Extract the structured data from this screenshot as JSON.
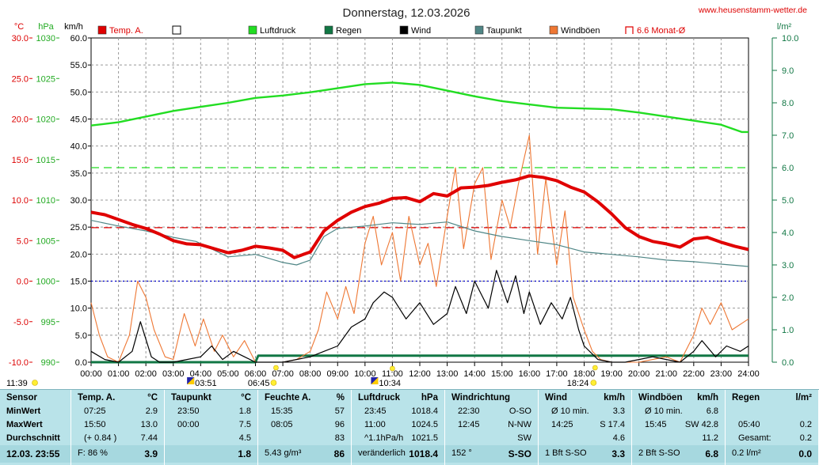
{
  "header": {
    "title": "Donnerstag, 12.03.2026",
    "site": "www.heusenstamm-wetter.de",
    "unit_temp": "°C",
    "unit_pressure": "hPa",
    "unit_wind": "km/h",
    "unit_rain": "l/m²"
  },
  "legend": [
    {
      "label": "Temp. A.",
      "color": "#e00000",
      "kind": "filled"
    },
    {
      "label": "",
      "color": "#000000",
      "kind": "empty"
    },
    {
      "label": "Luftdruck",
      "color": "#22dd22",
      "kind": "filled"
    },
    {
      "label": "Regen",
      "color": "#117744",
      "kind": "filled"
    },
    {
      "label": "Wind",
      "color": "#000000",
      "kind": "filled"
    },
    {
      "label": "Taupunkt",
      "color": "#4f8686",
      "kind": "filled"
    },
    {
      "label": "Windböen",
      "color": "#ee7733",
      "kind": "filled"
    },
    {
      "label": "6.6 Monat-Ø",
      "color": "#e00000",
      "kind": "outline"
    }
  ],
  "markers": {
    "left_time": "11:39",
    "sunrise": "06:45",
    "sunset": "18:24",
    "moon_events": [
      "03:51",
      "10:34"
    ]
  },
  "chart_data": {
    "type": "line",
    "x_unit": "hours (00:00-24:00)",
    "xlim": [
      0,
      24
    ],
    "x_ticks": [
      "00:00",
      "01:00",
      "02:00",
      "03:00",
      "04:00",
      "05:00",
      "06:00",
      "07:00",
      "08:00",
      "09:00",
      "10:00",
      "11:00",
      "12:00",
      "13:00",
      "14:00",
      "15:00",
      "16:00",
      "17:00",
      "18:00",
      "19:00",
      "20:00",
      "21:00",
      "22:00",
      "23:00",
      "24:00"
    ],
    "axes": {
      "temp": {
        "label": "°C",
        "ylim": [
          -10,
          30
        ],
        "ticks": [
          "30.0",
          "25.0",
          "20.0",
          "15.0",
          "10.0",
          "5.0",
          "0.0",
          "-5.0",
          "-10.0"
        ]
      },
      "pressure": {
        "label": "hPa",
        "ylim": [
          990,
          1030
        ],
        "ticks": [
          "1030",
          "1025",
          "1020",
          "1015",
          "1010",
          "1005",
          "1000",
          "995",
          "990"
        ]
      },
      "wind": {
        "label": "km/h",
        "ylim": [
          0,
          60
        ],
        "ticks": [
          "60.0",
          "55.0",
          "50.0",
          "45.0",
          "40.0",
          "35.0",
          "30.0",
          "25.0",
          "20.0",
          "15.0",
          "10.0",
          "5.0",
          "0.0"
        ]
      },
      "rain": {
        "label": "l/m²",
        "ylim": [
          0,
          10
        ],
        "ticks": [
          "10.0",
          "9.0",
          "8.0",
          "7.0",
          "6.0",
          "5.0",
          "4.0",
          "3.0",
          "2.0",
          "1.0",
          "0.0"
        ]
      }
    },
    "reference_lines": {
      "pressure_level": 1014,
      "temp_month_avg": 6.6,
      "temp_zero": 0
    },
    "grid": true,
    "series": [
      {
        "name": "Temp. A.",
        "axis": "temp",
        "color": "#e00000",
        "points": [
          [
            0,
            8.5
          ],
          [
            0.5,
            8.2
          ],
          [
            1,
            7.6
          ],
          [
            1.5,
            7.0
          ],
          [
            2,
            6.5
          ],
          [
            2.5,
            5.8
          ],
          [
            3,
            5.0
          ],
          [
            3.5,
            4.6
          ],
          [
            4,
            4.5
          ],
          [
            4.5,
            4.0
          ],
          [
            5,
            3.5
          ],
          [
            5.5,
            3.8
          ],
          [
            6,
            4.3
          ],
          [
            6.5,
            4.1
          ],
          [
            7,
            3.8
          ],
          [
            7.5,
            3.0
          ],
          [
            7.42,
            2.9
          ],
          [
            8,
            3.6
          ],
          [
            8.5,
            6.2
          ],
          [
            9,
            7.5
          ],
          [
            9.5,
            8.5
          ],
          [
            10,
            9.2
          ],
          [
            10.5,
            9.6
          ],
          [
            11,
            10.2
          ],
          [
            11.5,
            10.3
          ],
          [
            12,
            9.8
          ],
          [
            12.5,
            10.8
          ],
          [
            13,
            10.5
          ],
          [
            13.5,
            11.5
          ],
          [
            14,
            11.6
          ],
          [
            14.5,
            11.8
          ],
          [
            15,
            12.2
          ],
          [
            15.5,
            12.5
          ],
          [
            16,
            13.0
          ],
          [
            16.5,
            12.8
          ],
          [
            17,
            12.4
          ],
          [
            17.5,
            11.6
          ],
          [
            18,
            11.0
          ],
          [
            18.5,
            9.8
          ],
          [
            19,
            8.3
          ],
          [
            19.5,
            6.6
          ],
          [
            20,
            5.5
          ],
          [
            20.5,
            4.9
          ],
          [
            21,
            4.6
          ],
          [
            21.5,
            4.2
          ],
          [
            22,
            5.2
          ],
          [
            22.5,
            5.4
          ],
          [
            23,
            4.8
          ],
          [
            23.5,
            4.3
          ],
          [
            24,
            3.9
          ]
        ]
      },
      {
        "name": "Taupunkt",
        "axis": "temp",
        "color": "#4f8686",
        "points": [
          [
            0,
            7.5
          ],
          [
            1,
            6.8
          ],
          [
            2,
            6.2
          ],
          [
            3,
            5.4
          ],
          [
            3.83,
            4.9
          ],
          [
            4.5,
            3.8
          ],
          [
            5,
            3.0
          ],
          [
            6,
            3.3
          ],
          [
            7,
            2.3
          ],
          [
            7.5,
            2.0
          ],
          [
            8,
            2.6
          ],
          [
            8.5,
            5.5
          ],
          [
            9,
            6.5
          ],
          [
            10,
            6.8
          ],
          [
            11,
            7.2
          ],
          [
            12,
            7.0
          ],
          [
            13,
            7.3
          ],
          [
            14,
            6.2
          ],
          [
            15,
            5.5
          ],
          [
            16,
            5.0
          ],
          [
            17,
            4.5
          ],
          [
            18,
            3.6
          ],
          [
            19,
            3.3
          ],
          [
            20,
            3.0
          ],
          [
            21,
            2.6
          ],
          [
            22,
            2.4
          ],
          [
            23,
            2.1
          ],
          [
            24,
            1.8
          ]
        ]
      },
      {
        "name": "Luftdruck",
        "axis": "pressure",
        "color": "#22dd22",
        "points": [
          [
            0,
            1019.2
          ],
          [
            1,
            1019.6
          ],
          [
            2,
            1020.3
          ],
          [
            3,
            1021.0
          ],
          [
            4,
            1021.5
          ],
          [
            5,
            1022.0
          ],
          [
            6,
            1022.6
          ],
          [
            7,
            1022.9
          ],
          [
            8,
            1023.3
          ],
          [
            9,
            1023.8
          ],
          [
            10,
            1024.3
          ],
          [
            11,
            1024.5
          ],
          [
            12,
            1024.2
          ],
          [
            13,
            1023.5
          ],
          [
            14,
            1022.8
          ],
          [
            15,
            1022.2
          ],
          [
            16,
            1021.8
          ],
          [
            17,
            1021.4
          ],
          [
            18,
            1021.3
          ],
          [
            19,
            1021.2
          ],
          [
            20,
            1020.8
          ],
          [
            21,
            1020.3
          ],
          [
            22,
            1019.8
          ],
          [
            23,
            1019.3
          ],
          [
            23.75,
            1018.4
          ],
          [
            24,
            1018.4
          ]
        ]
      },
      {
        "name": "Wind",
        "axis": "wind",
        "color": "#000000",
        "points": [
          [
            0,
            2
          ],
          [
            0.5,
            0.5
          ],
          [
            1,
            0
          ],
          [
            1.5,
            2
          ],
          [
            1.8,
            7.5
          ],
          [
            2.2,
            1
          ],
          [
            2.5,
            0
          ],
          [
            3,
            0
          ],
          [
            3.5,
            0.5
          ],
          [
            4,
            1
          ],
          [
            4.4,
            3
          ],
          [
            4.8,
            0.5
          ],
          [
            5.2,
            2
          ],
          [
            5.6,
            1
          ],
          [
            6,
            0
          ],
          [
            7,
            0
          ],
          [
            8,
            1
          ],
          [
            8.5,
            2
          ],
          [
            9,
            3
          ],
          [
            9.5,
            6.5
          ],
          [
            10,
            8
          ],
          [
            10.3,
            11
          ],
          [
            10.7,
            13
          ],
          [
            11,
            12
          ],
          [
            11.5,
            8
          ],
          [
            12,
            11
          ],
          [
            12.5,
            7
          ],
          [
            13,
            9
          ],
          [
            13.3,
            14
          ],
          [
            13.7,
            9
          ],
          [
            14,
            15
          ],
          [
            14.5,
            10
          ],
          [
            14.8,
            17
          ],
          [
            15.2,
            11
          ],
          [
            15.5,
            16
          ],
          [
            15.8,
            9
          ],
          [
            16,
            13
          ],
          [
            16.4,
            7
          ],
          [
            16.8,
            11
          ],
          [
            17.2,
            8
          ],
          [
            17.5,
            12
          ],
          [
            17.8,
            6
          ],
          [
            18,
            3
          ],
          [
            18.5,
            0.5
          ],
          [
            19,
            0
          ],
          [
            19.5,
            0
          ],
          [
            20,
            0.5
          ],
          [
            20.5,
            1
          ],
          [
            21,
            0.5
          ],
          [
            21.5,
            0
          ],
          [
            22,
            2
          ],
          [
            22.3,
            4
          ],
          [
            22.8,
            1
          ],
          [
            23.2,
            3
          ],
          [
            23.7,
            2
          ],
          [
            24,
            3
          ]
        ]
      },
      {
        "name": "Windböen",
        "axis": "wind",
        "color": "#ee7733",
        "points": [
          [
            0,
            11
          ],
          [
            0.3,
            5
          ],
          [
            0.6,
            1
          ],
          [
            1,
            0
          ],
          [
            1.4,
            5
          ],
          [
            1.7,
            15
          ],
          [
            2,
            12
          ],
          [
            2.3,
            6
          ],
          [
            2.7,
            1
          ],
          [
            3,
            0.5
          ],
          [
            3.4,
            9
          ],
          [
            3.8,
            3
          ],
          [
            4.1,
            8
          ],
          [
            4.5,
            2
          ],
          [
            4.8,
            5
          ],
          [
            5.2,
            1
          ],
          [
            5.6,
            4
          ],
          [
            6,
            0
          ],
          [
            6.5,
            0
          ],
          [
            7,
            0
          ],
          [
            7.5,
            0.5
          ],
          [
            8,
            2
          ],
          [
            8.3,
            6
          ],
          [
            8.6,
            13
          ],
          [
            9,
            8
          ],
          [
            9.3,
            14
          ],
          [
            9.6,
            9
          ],
          [
            10,
            22
          ],
          [
            10.3,
            27
          ],
          [
            10.6,
            18
          ],
          [
            11,
            24
          ],
          [
            11.3,
            15
          ],
          [
            11.6,
            27
          ],
          [
            12,
            18
          ],
          [
            12.3,
            22
          ],
          [
            12.6,
            14
          ],
          [
            13,
            27
          ],
          [
            13.3,
            36
          ],
          [
            13.6,
            21
          ],
          [
            14,
            33
          ],
          [
            14.3,
            36
          ],
          [
            14.6,
            19
          ],
          [
            15,
            30
          ],
          [
            15.3,
            25
          ],
          [
            15.6,
            33
          ],
          [
            16,
            42
          ],
          [
            16.3,
            20
          ],
          [
            16.6,
            34
          ],
          [
            17,
            18
          ],
          [
            17.3,
            28
          ],
          [
            17.6,
            12
          ],
          [
            18,
            6
          ],
          [
            18.3,
            2
          ],
          [
            18.6,
            0.5
          ],
          [
            19,
            0
          ],
          [
            20,
            0
          ],
          [
            20.5,
            0.5
          ],
          [
            21,
            1
          ],
          [
            21.5,
            0
          ],
          [
            22,
            5
          ],
          [
            22.3,
            10
          ],
          [
            22.6,
            7
          ],
          [
            23,
            11
          ],
          [
            23.4,
            6
          ],
          [
            23.7,
            7
          ],
          [
            24,
            8
          ]
        ]
      },
      {
        "name": "Regen",
        "axis": "rain",
        "color": "#117744",
        "points": [
          [
            0,
            0
          ],
          [
            6,
            0
          ],
          [
            6.1,
            0.2
          ],
          [
            24,
            0.2
          ]
        ]
      }
    ]
  },
  "summary": {
    "columns": [
      {
        "title": "Sensor",
        "unit": "",
        "rows": [
          "MinWert",
          "MaxWert",
          "Durchschnitt"
        ],
        "last": "12.03. 23:55",
        "last_value": ""
      },
      {
        "title": "Temp. A.",
        "unit": "°C",
        "rows_a": [
          "07:25",
          "15:50",
          "(+ 0.84 )"
        ],
        "rows_b": [
          "2.9",
          "13.0",
          "7.44"
        ],
        "last": "F: 86 %",
        "last_value": "3.9"
      },
      {
        "title": "Taupunkt",
        "unit": "°C",
        "rows_a": [
          "23:50",
          "00:00",
          ""
        ],
        "rows_b": [
          "1.8",
          "7.5",
          "4.5"
        ],
        "last": "",
        "last_value": "1.8"
      },
      {
        "title": "Feuchte A.",
        "unit": "%",
        "rows_a": [
          "15:35",
          "08:05",
          ""
        ],
        "rows_b": [
          "57",
          "96",
          "83"
        ],
        "last": "5.43 g/m³",
        "last_value": "86"
      },
      {
        "title": "Luftdruck",
        "unit": "hPa",
        "rows_a": [
          "23:45",
          "11:00",
          "^1.1hPa/h"
        ],
        "rows_b": [
          "1018.4",
          "1024.5",
          "1021.5"
        ],
        "last": "veränderlich",
        "last_value": "1018.4"
      },
      {
        "title": "Windrichtung",
        "unit": "",
        "rows_a": [
          "22:30",
          "12:45",
          ""
        ],
        "rows_b": [
          "O-SO",
          "N-NW",
          "SW"
        ],
        "last": "152 °",
        "last_value": "S-SO"
      },
      {
        "title": "Wind",
        "unit": "km/h",
        "rows_a": [
          "Ø 10 min.",
          "14:25",
          ""
        ],
        "rows_b": [
          "3.3",
          "S 17.4",
          "4.6"
        ],
        "last": "1 Bft S-SO",
        "last_value": "3.3"
      },
      {
        "title": "Windböen",
        "unit": "km/h",
        "rows_a": [
          "Ø 10 min.",
          "15:45",
          ""
        ],
        "rows_b": [
          "6.8",
          "SW 42.8",
          "11.2"
        ],
        "last": "2 Bft S-SO",
        "last_value": "6.8"
      },
      {
        "title": "Regen",
        "unit": "l/m²",
        "rows_a": [
          "",
          "05:40",
          "Gesamt:"
        ],
        "rows_b": [
          "",
          "0.2",
          "0.2"
        ],
        "last": "0.2 l/m²",
        "last_value": "0.0"
      }
    ]
  }
}
